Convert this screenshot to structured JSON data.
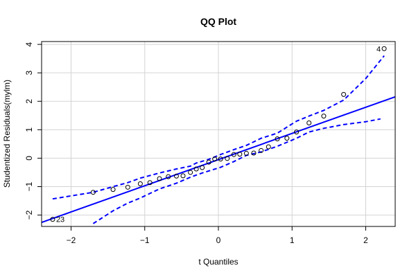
{
  "chart_data": {
    "type": "scatter",
    "title": "QQ Plot",
    "xlabel": "t Quantiles",
    "ylabel": "Studentized Residuals(mylm)",
    "xlim": [
      -2.4,
      2.4
    ],
    "ylim": [
      -2.4,
      4.1
    ],
    "x_ticks": [
      -2,
      -1,
      0,
      1,
      2
    ],
    "y_ticks": [
      -2,
      -1,
      0,
      1,
      2,
      3,
      4
    ],
    "x_tick_labels": [
      "−2",
      "−1",
      "0",
      "1",
      "2"
    ],
    "y_tick_labels": [
      "−2",
      "−1",
      "0",
      "1",
      "2",
      "3",
      "4"
    ],
    "grid": true,
    "points": [
      {
        "x": -2.25,
        "y": -2.15
      },
      {
        "x": -1.7,
        "y": -1.2
      },
      {
        "x": -1.43,
        "y": -1.1
      },
      {
        "x": -1.23,
        "y": -1.02
      },
      {
        "x": -1.06,
        "y": -0.9
      },
      {
        "x": -0.93,
        "y": -0.86
      },
      {
        "x": -0.8,
        "y": -0.72
      },
      {
        "x": -0.68,
        "y": -0.65
      },
      {
        "x": -0.57,
        "y": -0.63
      },
      {
        "x": -0.48,
        "y": -0.62
      },
      {
        "x": -0.38,
        "y": -0.5
      },
      {
        "x": -0.3,
        "y": -0.38
      },
      {
        "x": -0.22,
        "y": -0.33
      },
      {
        "x": -0.13,
        "y": -0.14
      },
      {
        "x": -0.05,
        "y": -0.03
      },
      {
        "x": 0.03,
        "y": -0.03
      },
      {
        "x": 0.12,
        "y": -0.01
      },
      {
        "x": 0.21,
        "y": 0.13
      },
      {
        "x": 0.29,
        "y": 0.14
      },
      {
        "x": 0.38,
        "y": 0.17
      },
      {
        "x": 0.48,
        "y": 0.18
      },
      {
        "x": 0.58,
        "y": 0.27
      },
      {
        "x": 0.68,
        "y": 0.4
      },
      {
        "x": 0.8,
        "y": 0.68
      },
      {
        "x": 0.93,
        "y": 0.7
      },
      {
        "x": 1.06,
        "y": 0.92
      },
      {
        "x": 1.23,
        "y": 1.24
      },
      {
        "x": 1.43,
        "y": 1.48
      },
      {
        "x": 1.7,
        "y": 2.24
      },
      {
        "x": 2.25,
        "y": 3.85
      }
    ],
    "point_labels": [
      {
        "text": "23",
        "x": -2.25,
        "y": -2.15,
        "side": "right"
      },
      {
        "text": "4",
        "x": 2.25,
        "y": 3.85,
        "side": "left"
      }
    ],
    "reference_line": {
      "slope": 0.92,
      "intercept": -0.05,
      "color": "#0000ff"
    },
    "envelope_upper": [
      {
        "x": -2.25,
        "y": -1.43
      },
      {
        "x": -1.7,
        "y": -1.2
      },
      {
        "x": -1.43,
        "y": -1.0
      },
      {
        "x": -1.23,
        "y": -0.86
      },
      {
        "x": -1.06,
        "y": -0.7
      },
      {
        "x": -0.8,
        "y": -0.52
      },
      {
        "x": -0.57,
        "y": -0.38
      },
      {
        "x": -0.38,
        "y": -0.28
      },
      {
        "x": -0.3,
        "y": -0.17
      },
      {
        "x": -0.13,
        "y": -0.04
      },
      {
        "x": 0.03,
        "y": 0.13
      },
      {
        "x": 0.21,
        "y": 0.3
      },
      {
        "x": 0.38,
        "y": 0.45
      },
      {
        "x": 0.58,
        "y": 0.7
      },
      {
        "x": 0.8,
        "y": 0.88
      },
      {
        "x": 1.06,
        "y": 1.3
      },
      {
        "x": 1.23,
        "y": 1.48
      },
      {
        "x": 1.43,
        "y": 1.68
      },
      {
        "x": 1.7,
        "y": 2.04
      },
      {
        "x": 2.0,
        "y": 2.8
      },
      {
        "x": 2.25,
        "y": 3.6
      }
    ],
    "envelope_lower": [
      {
        "x": -1.7,
        "y": -2.3
      },
      {
        "x": -1.43,
        "y": -1.85
      },
      {
        "x": -1.23,
        "y": -1.58
      },
      {
        "x": -1.06,
        "y": -1.4
      },
      {
        "x": -0.8,
        "y": -1.08
      },
      {
        "x": -0.57,
        "y": -0.88
      },
      {
        "x": -0.38,
        "y": -0.67
      },
      {
        "x": -0.22,
        "y": -0.52
      },
      {
        "x": 0.03,
        "y": -0.32
      },
      {
        "x": 0.21,
        "y": -0.12
      },
      {
        "x": 0.38,
        "y": 0.1
      },
      {
        "x": 0.58,
        "y": 0.22
      },
      {
        "x": 0.8,
        "y": 0.42
      },
      {
        "x": 1.06,
        "y": 0.7
      },
      {
        "x": 1.23,
        "y": 0.92
      },
      {
        "x": 1.43,
        "y": 1.05
      },
      {
        "x": 1.7,
        "y": 1.18
      },
      {
        "x": 2.0,
        "y": 1.28
      },
      {
        "x": 2.2,
        "y": 1.38
      }
    ],
    "colors": {
      "line": "#0000ff",
      "points": "#000000",
      "grid": "#d3d3d3"
    }
  }
}
